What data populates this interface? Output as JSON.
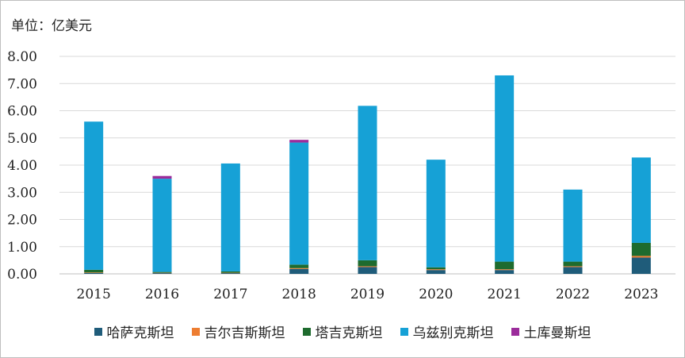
{
  "chart_data": {
    "type": "bar",
    "stacked": true,
    "unit_label": "单位：亿美元",
    "categories": [
      "2015",
      "2016",
      "2017",
      "2018",
      "2019",
      "2020",
      "2021",
      "2022",
      "2023"
    ],
    "ylim": [
      0,
      8
    ],
    "yticks": [
      "0.00",
      "1.00",
      "2.00",
      "3.00",
      "4.00",
      "5.00",
      "6.00",
      "7.00",
      "8.00"
    ],
    "grid": true,
    "legend_position": "bottom",
    "series": [
      {
        "name": "哈萨克斯坦",
        "color": "#1f5c7a",
        "values": [
          0.03,
          0.03,
          0.03,
          0.18,
          0.25,
          0.14,
          0.14,
          0.25,
          0.6
        ]
      },
      {
        "name": "吉尔吉斯斯坦",
        "color": "#ed7d31",
        "values": [
          0.02,
          0.01,
          0.01,
          0.03,
          0.03,
          0.03,
          0.03,
          0.03,
          0.06
        ]
      },
      {
        "name": "塔吉克斯坦",
        "color": "#1e6b2e",
        "values": [
          0.1,
          0.03,
          0.05,
          0.13,
          0.22,
          0.07,
          0.28,
          0.17,
          0.48
        ]
      },
      {
        "name": "乌兹别克斯坦",
        "color": "#16a1d6",
        "values": [
          5.45,
          3.43,
          3.97,
          4.49,
          5.68,
          3.96,
          6.85,
          2.65,
          3.14
        ]
      },
      {
        "name": "土库曼斯坦",
        "color": "#9b2c9b",
        "values": [
          0.0,
          0.1,
          0.0,
          0.1,
          0.0,
          0.0,
          0.0,
          0.0,
          0.0
        ]
      }
    ]
  }
}
